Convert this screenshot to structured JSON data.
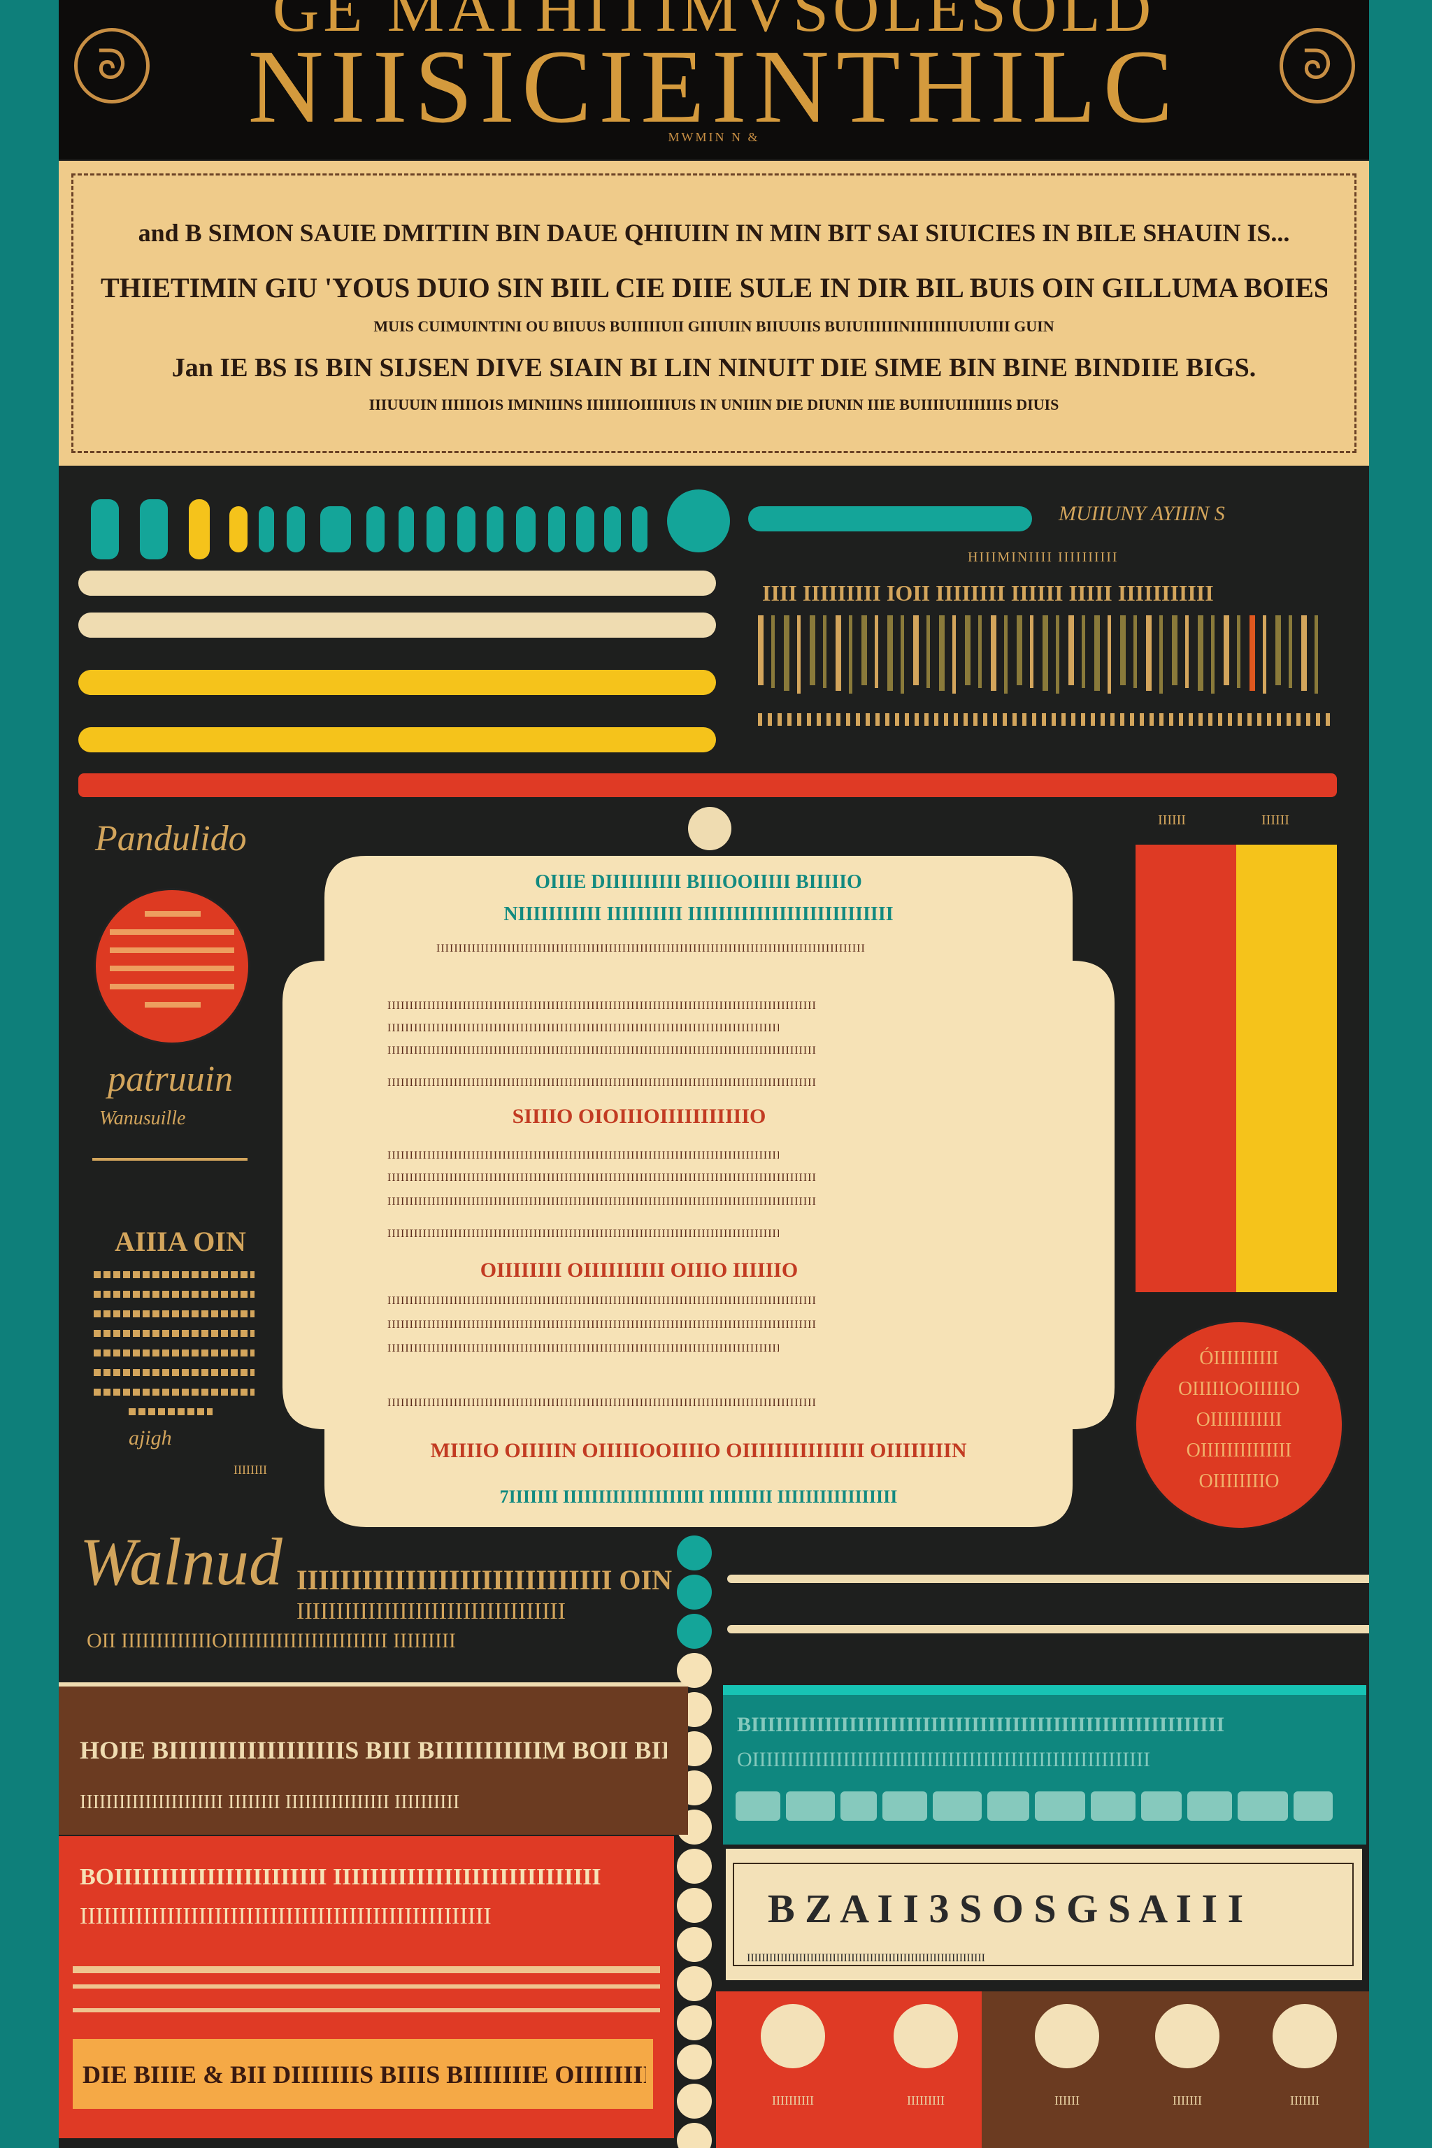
{
  "header": {
    "title_top": "GE MATHITIMVSOLESOLD",
    "title": "NIISICIEINTHILC",
    "subtitle": "MWMIN N &",
    "emblem_left": "ᘐ",
    "emblem_right": "ᘐ"
  },
  "intro": {
    "lines": [
      "and B  SIMON SAUIE DMITIIN BIN DAUE QHIUIIN IN MIN BIT SAI SIUICIES IN BILE SHAUIN IS...",
      "THIETIMIN GIU 'YOUS DUIO SIN BIIL CIE DIIE SULE IN DIR BIL BUIS OIN GILLUMA BOIES M A BINIE BORF",
      "MUIS CUIMUINTINI OU BIIUUS BUIIIIIUII GIIIUIIN BIIUUIIS BUIUIIIIIINIIIIIIIIUIUIIII GUIN",
      "Jan IE BS IS BIN SIJSEN DIVE SIAIN BI LIN NINUIT DIE SIME BIN BINE BINDIIE BIGS.",
      "IIIUUUIN IIIIIIOIS IMINIIINS IIIIIIIOIIIIIUIS IN UNIIIN DIE DIUNIN IIIE BUIIIIUIIIIIIIIS DIUIS"
    ]
  },
  "top_right": {
    "label": "MUIIUNY AYIIIN S",
    "caption": "HIIIMINIIII IIIIIIIIII",
    "bar_labels": "IIII IIIIIIIII IOII IIIIIIII IIIIII IIIII IIIIIIIIIII"
  },
  "left_col": {
    "script1": "Pandulido",
    "script2": "patruuin",
    "script2_sub": "Wanusuille",
    "head": "AIIIA OIN",
    "small": "ajigh",
    "tiny": "IIIIIIII"
  },
  "panel": {
    "h1": "OIIIE DIIIIIIIIII BIIIOOIIIII BIIIIIO",
    "h2": "NIIIIIIIIIII IIIIIIIIII IIIIIIIIIIIIIIIIIIIIIIIIIII",
    "sec1": "SIIIIO OIOIIIOIIIIIIIIIIIO",
    "sec2": "OIIIIIIII OIIIIIIIIII OIIIO IIIIIIO",
    "foot1": "MIIIIO OIIIIIN OIIIIIOOIIIIO OIIIIIIIIIIIIIII OIIIIIIIIN",
    "foot2": "7IIIIIII IIIIIIIIIIIIIIIIIIII IIIIIIIII IIIIIIIIIIIIIIIII",
    "para": "IIIIIIIIIIIIIIIIIIIIIIIIIIIIIIIIIIIIIIIIIIIIIIIIIIIIIIIIIIIIIIIIIIIIIIIIIIIIIIIIIIIIIIIIIIIIIIIII"
  },
  "right_col": {
    "bar_label_left": "IIIIII",
    "bar_label_right": "IIIIII",
    "circle_text": [
      "ÓIIIIIIIIII",
      "OIIIIIOOIIIIIO",
      "OIIIIIIIIIII",
      "OIIIIIIIIIIIIII",
      "OIIIIIIIIO"
    ]
  },
  "lower": {
    "script": "Walnud",
    "headline": "IIIIIIIIIIIIIIIIIIIIIIIIIIIII OIN",
    "sub1": "IIIIIIIIIIIIIIIIIIIIIIIIIIIIIIIIII",
    "sub2": "OII IIIIIIIIIIIIIOIIIIIIIIIIIIIIIIIIIIIII IIIIIIIII"
  },
  "brown_block": {
    "line1": "HOIE BIIIIIIIIIIIIIIIIIIS BIII BIIIIIIIIIIIM BOII BIIO",
    "line2": "IIIIIIIIIIIIIIIIIIIIII IIIIIIII IIIIIIIIIIIIIIII IIIIIIIIII"
  },
  "red_block": {
    "line1": "BOIIIIIIIIIIIIIIIIIIIIIII IIIIIIIIIIIIIIIIIIIIIIIIIIIII",
    "line2": "IIIIIIIIIIIIIIIIIIIIIIIIIIIIIIIIIIIIIIIIIIIIIIIIIIII",
    "banner": "DIE BIIIE & BII DIIIIIIIS BIIIS BIIIIIIIE OIIIIIIIIIE."
  },
  "teal_block": {
    "line1": "BIIIIIIIIIIIIIIIIIIIIIIIIIIIIIIIIIIIIIIIIIIIIIIIIIIIIIIIIII",
    "line2": "OIIIIIIIIIIIIIIIIIIIIIIIIIIIIIIIIIIIIIIIIIIIIIIIIIIIIIIIII"
  },
  "cream_box": {
    "line": "B  Z  A  I  I  3  S  O  S  G  S  A  I  I  I",
    "foot": "IIIIIIIIIIIIIIIIIIIIIIIIIIIIIIIIIIIIIIIIIIIIIIIIIIIIIIIIIIIIIIII"
  },
  "bottom": {
    "caps": [
      "IIIIIIIIII",
      "IIIIIIIII",
      "IIIIII",
      "IIIIIII",
      "IIIIIII"
    ]
  },
  "colors": {
    "teal": "#14a599",
    "yellow": "#f5c31b",
    "red": "#df3a25",
    "cream": "#efdcb1",
    "gold": "#d3a55c",
    "dark": "#1e1f1e",
    "brown": "#6b3b21"
  }
}
